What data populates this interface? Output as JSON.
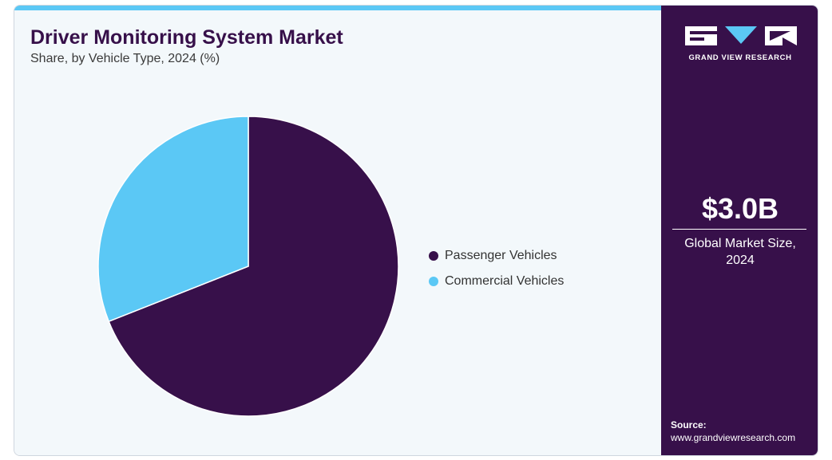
{
  "header": {
    "title": "Driver Monitoring System Market",
    "subtitle": "Share, by Vehicle Type, 2024 (%)"
  },
  "sidebar": {
    "brand": "GRAND VIEW RESEARCH",
    "market_size": "$3.0B",
    "market_size_label_line1": "Global Market Size,",
    "market_size_label_line2": "2024",
    "source_title": "Source:",
    "source_url": "www.grandviewresearch.com"
  },
  "colors": {
    "accent_cyan": "#5bc8f5",
    "brand_purple": "#37104a",
    "panel_background": "#f3f8fb"
  },
  "chart_data": {
    "type": "pie",
    "title": "Driver Monitoring System Market",
    "subtitle": "Share, by Vehicle Type, 2024 (%)",
    "legend_position": "right",
    "slices": [
      {
        "name": "Passenger Vehicles",
        "value": 69,
        "color": "#37104a"
      },
      {
        "name": "Commercial Vehicles",
        "value": 31,
        "color": "#5bc8f5"
      }
    ]
  }
}
